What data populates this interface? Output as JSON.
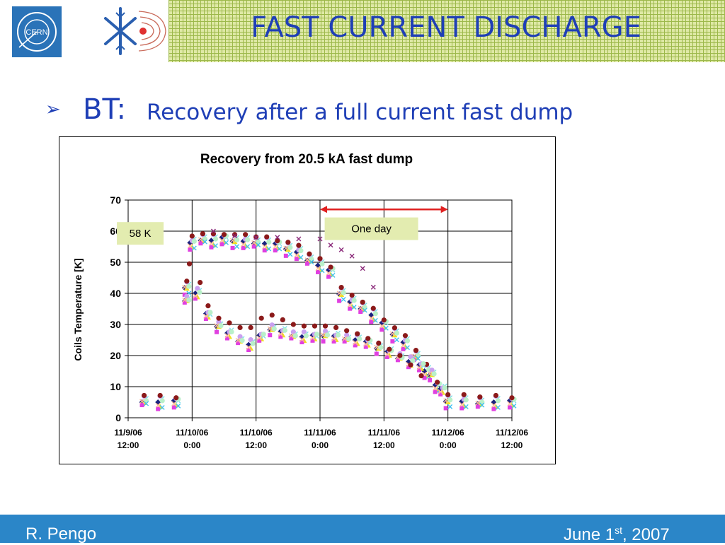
{
  "header": {
    "title": "FAST CURRENT DISCHARGE",
    "logo_text": "CERN",
    "logo_icon": "cern-logo-icon",
    "snowflake_icon": "snowflake-magnet-icon"
  },
  "bullet": {
    "icon": "arrow-bullet-icon",
    "label": "BT:",
    "text": "Recovery after a full current fast dump"
  },
  "footer": {
    "author": "R. Pengo",
    "date_prefix": "June 1",
    "date_sup": "st",
    "date_suffix": ", 2007",
    "color": "#2b86c8"
  },
  "chart_data": {
    "type": "scatter",
    "title": "Recovery from 20.5 kA fast dump",
    "ylabel": "Coils Temperature [K]",
    "xlabel": "",
    "x_unit": "date-time",
    "xlim": [
      "11/9/06 12:00",
      "11/12/06 12:00"
    ],
    "ylim": [
      0,
      70
    ],
    "yticks": [
      0,
      10,
      20,
      30,
      40,
      50,
      60,
      70
    ],
    "xticks": [
      [
        "11/9/06",
        "12:00"
      ],
      [
        "11/10/06",
        "0:00"
      ],
      [
        "11/10/06",
        "12:00"
      ],
      [
        "11/11/06",
        "0:00"
      ],
      [
        "11/11/06",
        "12:00"
      ],
      [
        "11/12/06",
        "0:00"
      ],
      [
        "11/12/06",
        "12:00"
      ]
    ],
    "grid": true,
    "legend": "none",
    "annotations": [
      {
        "text": "58 K",
        "x": "11/9/06 14:00",
        "y": 59.5
      },
      {
        "text": "One day",
        "x": "11/11/06 3:00",
        "y": 61
      }
    ],
    "arrow": {
      "from": "11/11/06 0:00",
      "to": "11/12/06 0:00",
      "y": 67,
      "color": "#e02020"
    },
    "groups": [
      {
        "branch": "high",
        "points": [
          [
            "11/9/06 15:00",
            5.5
          ],
          [
            "11/9/06 18:00",
            5
          ],
          [
            "11/9/06 21:00",
            5
          ],
          [
            "11/9/06 23:00",
            42
          ],
          [
            "11/10/06 0:00",
            56
          ],
          [
            "11/10/06 2:00",
            57.5
          ],
          [
            "11/10/06 4:00",
            57
          ],
          [
            "11/10/06 6:00",
            57.5
          ],
          [
            "11/10/06 8:00",
            57
          ],
          [
            "11/10/06 10:00",
            56.5
          ],
          [
            "11/10/06 12:00",
            56.5
          ],
          [
            "11/10/06 14:00",
            56
          ],
          [
            "11/10/06 16:00",
            55.5
          ],
          [
            "11/10/06 18:00",
            54.5
          ],
          [
            "11/10/06 20:00",
            53
          ],
          [
            "11/10/06 22:00",
            51
          ],
          [
            "11/11/06 0:00",
            49
          ],
          [
            "11/11/06 2:00",
            47
          ],
          [
            "11/11/06 4:00",
            40
          ],
          [
            "11/11/06 6:00",
            37
          ],
          [
            "11/11/06 8:00",
            35.5
          ],
          [
            "11/11/06 10:00",
            33
          ],
          [
            "11/11/06 12:00",
            30
          ],
          [
            "11/11/06 14:00",
            27
          ],
          [
            "11/11/06 16:00",
            24
          ],
          [
            "11/11/06 18:00",
            20
          ],
          [
            "11/11/06 20:00",
            15
          ],
          [
            "11/11/06 22:00",
            10
          ],
          [
            "11/12/06 0:00",
            5.5
          ],
          [
            "11/12/06 3:00",
            5
          ],
          [
            "11/12/06 6:00",
            5
          ],
          [
            "11/12/06 9:00",
            5
          ],
          [
            "11/12/06 12:00",
            5
          ]
        ]
      },
      {
        "branch": "low",
        "points": [
          [
            "11/9/06 23:00",
            38
          ],
          [
            "11/10/06 1:00",
            40
          ],
          [
            "11/10/06 3:00",
            33
          ],
          [
            "11/10/06 5:00",
            29.5
          ],
          [
            "11/10/06 7:00",
            27
          ],
          [
            "11/10/06 9:00",
            25
          ],
          [
            "11/10/06 11:00",
            23.5
          ],
          [
            "11/10/06 13:00",
            26
          ],
          [
            "11/10/06 15:00",
            28.5
          ],
          [
            "11/10/06 17:00",
            27.5
          ],
          [
            "11/10/06 19:00",
            26.5
          ],
          [
            "11/10/06 21:00",
            26
          ],
          [
            "11/10/06 23:00",
            26
          ],
          [
            "11/11/06 1:00",
            26.5
          ],
          [
            "11/11/06 3:00",
            26
          ],
          [
            "11/11/06 5:00",
            25.5
          ],
          [
            "11/11/06 7:00",
            25
          ],
          [
            "11/11/06 9:00",
            24
          ],
          [
            "11/11/06 11:00",
            22.5
          ],
          [
            "11/11/06 13:00",
            21
          ],
          [
            "11/11/06 15:00",
            19.5
          ],
          [
            "11/11/06 17:00",
            18
          ],
          [
            "11/11/06 19:00",
            16.5
          ],
          [
            "11/11/06 21:00",
            14
          ],
          [
            "11/11/06 23:00",
            9
          ]
        ]
      },
      {
        "branch": "maroon",
        "points": [
          [
            "11/9/06 23:30",
            49.5
          ],
          [
            "11/10/06 1:30",
            43.5
          ],
          [
            "11/10/06 3:00",
            36
          ],
          [
            "11/10/06 5:00",
            32
          ],
          [
            "11/10/06 7:00",
            30.5
          ],
          [
            "11/10/06 9:00",
            29
          ],
          [
            "11/10/06 11:00",
            29
          ],
          [
            "11/10/06 13:00",
            32
          ],
          [
            "11/10/06 15:00",
            33
          ],
          [
            "11/10/06 17:00",
            31.5
          ],
          [
            "11/10/06 19:00",
            30
          ],
          [
            "11/10/06 21:00",
            29.5
          ],
          [
            "11/10/06 23:00",
            29.5
          ],
          [
            "11/11/06 1:00",
            29.5
          ],
          [
            "11/11/06 3:00",
            29
          ],
          [
            "11/11/06 5:00",
            28
          ],
          [
            "11/11/06 7:00",
            27
          ],
          [
            "11/11/06 9:00",
            25.5
          ],
          [
            "11/11/06 11:00",
            24
          ],
          [
            "11/11/06 13:00",
            22
          ],
          [
            "11/11/06 15:00",
            20
          ],
          [
            "11/11/06 17:00",
            17
          ],
          [
            "11/11/06 19:00",
            13.5
          ]
        ]
      },
      {
        "branch": "purple-x",
        "points": [
          [
            "11/10/06 4:00",
            60
          ],
          [
            "11/10/06 8:00",
            58.5
          ],
          [
            "11/10/06 12:00",
            58
          ],
          [
            "11/10/06 16:00",
            58
          ],
          [
            "11/10/06 20:00",
            57.5
          ],
          [
            "11/11/06 0:00",
            57.5
          ],
          [
            "11/11/06 2:00",
            55.5
          ],
          [
            "11/11/06 4:00",
            54
          ],
          [
            "11/11/06 6:00",
            52
          ],
          [
            "11/11/06 8:00",
            48
          ],
          [
            "11/11/06 10:00",
            42
          ]
        ]
      }
    ]
  }
}
